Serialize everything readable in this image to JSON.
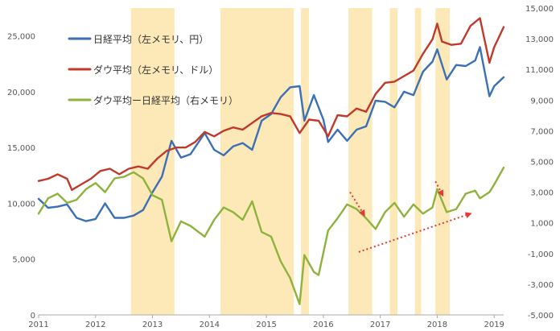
{
  "chart_data": {
    "type": "line",
    "x_range": [
      "2011-01",
      "2019-03"
    ],
    "x_ticks": [
      "2011",
      "2012",
      "2013",
      "2014",
      "2015",
      "2016",
      "2017",
      "2018",
      "2019"
    ],
    "y_left": {
      "range": [
        0,
        27500
      ],
      "ticks": [
        "0",
        "5,000",
        "10,000",
        "15,000",
        "20,000",
        "25,000"
      ]
    },
    "y_right": {
      "range": [
        -5000,
        15000
      ],
      "ticks": [
        "-5,000",
        "-3,000",
        "-1,000",
        "1,000",
        "3,000",
        "5,000",
        "7,000",
        "9,000",
        "11,000",
        "13,000",
        "15,000"
      ]
    },
    "grid": false,
    "legend_position": "top-left",
    "shaded_periods": [
      [
        "2012-08-15",
        "2013-05-20"
      ],
      [
        "2014-03-10",
        "2015-06-25"
      ],
      [
        "2015-08-10",
        "2015-09-30"
      ],
      [
        "2016-06-10",
        "2016-11-10"
      ],
      [
        "2017-03-01",
        "2017-04-20"
      ],
      [
        "2017-08-10",
        "2017-09-20"
      ],
      [
        "2017-12-20",
        "2018-03-20"
      ]
    ],
    "series": [
      {
        "name": "日経平均（左メモリ、円）",
        "axis": "left",
        "color": "#3b6fb6",
        "points": [
          [
            "2011-01",
            10400
          ],
          [
            "2011-03",
            9600
          ],
          [
            "2011-05",
            9700
          ],
          [
            "2011-07",
            9900
          ],
          [
            "2011-09",
            8700
          ],
          [
            "2011-11",
            8400
          ],
          [
            "2012-01",
            8600
          ],
          [
            "2012-03",
            10000
          ],
          [
            "2012-05",
            8700
          ],
          [
            "2012-07",
            8700
          ],
          [
            "2012-09",
            8900
          ],
          [
            "2012-11",
            9400
          ],
          [
            "2013-01",
            11000
          ],
          [
            "2013-03",
            12400
          ],
          [
            "2013-05",
            15600
          ],
          [
            "2013-07",
            14100
          ],
          [
            "2013-09",
            14400
          ],
          [
            "2013-12",
            16300
          ],
          [
            "2014-02",
            14800
          ],
          [
            "2014-04",
            14300
          ],
          [
            "2014-06",
            15100
          ],
          [
            "2014-08",
            15400
          ],
          [
            "2014-10",
            14800
          ],
          [
            "2014-12",
            17400
          ],
          [
            "2015-02",
            18000
          ],
          [
            "2015-04",
            19500
          ],
          [
            "2015-06",
            20400
          ],
          [
            "2015-08",
            20500
          ],
          [
            "2015-09",
            17400
          ],
          [
            "2015-11",
            19700
          ],
          [
            "2016-01",
            17500
          ],
          [
            "2016-02",
            15500
          ],
          [
            "2016-04",
            16600
          ],
          [
            "2016-06",
            15600
          ],
          [
            "2016-08",
            16600
          ],
          [
            "2016-10",
            16900
          ],
          [
            "2016-12",
            19200
          ],
          [
            "2017-02",
            19100
          ],
          [
            "2017-04",
            18600
          ],
          [
            "2017-06",
            20000
          ],
          [
            "2017-08",
            19700
          ],
          [
            "2017-10",
            21800
          ],
          [
            "2017-12",
            22700
          ],
          [
            "2018-01",
            23800
          ],
          [
            "2018-03",
            21100
          ],
          [
            "2018-05",
            22400
          ],
          [
            "2018-07",
            22300
          ],
          [
            "2018-09",
            22800
          ],
          [
            "2018-10",
            24000
          ],
          [
            "2018-11",
            21800
          ],
          [
            "2018-12",
            19600
          ],
          [
            "2019-01",
            20500
          ],
          [
            "2019-03",
            21300
          ]
        ]
      },
      {
        "name": "ダウ平均（左メモリ、ドル）",
        "axis": "left",
        "color": "#c0392b",
        "points": [
          [
            "2011-01",
            12000
          ],
          [
            "2011-03",
            12200
          ],
          [
            "2011-05",
            12600
          ],
          [
            "2011-07",
            12200
          ],
          [
            "2011-08",
            11200
          ],
          [
            "2011-10",
            11700
          ],
          [
            "2011-12",
            12200
          ],
          [
            "2012-02",
            12900
          ],
          [
            "2012-04",
            13100
          ],
          [
            "2012-06",
            12600
          ],
          [
            "2012-08",
            13100
          ],
          [
            "2012-10",
            13300
          ],
          [
            "2012-12",
            13100
          ],
          [
            "2013-02",
            14000
          ],
          [
            "2013-04",
            14700
          ],
          [
            "2013-06",
            15000
          ],
          [
            "2013-08",
            15000
          ],
          [
            "2013-10",
            15500
          ],
          [
            "2013-12",
            16400
          ],
          [
            "2014-02",
            16000
          ],
          [
            "2014-04",
            16500
          ],
          [
            "2014-06",
            16800
          ],
          [
            "2014-08",
            16600
          ],
          [
            "2014-10",
            17200
          ],
          [
            "2014-12",
            17800
          ],
          [
            "2015-02",
            18100
          ],
          [
            "2015-04",
            18000
          ],
          [
            "2015-06",
            17800
          ],
          [
            "2015-08",
            16300
          ],
          [
            "2015-10",
            17500
          ],
          [
            "2015-12",
            17400
          ],
          [
            "2016-02",
            16000
          ],
          [
            "2016-04",
            17900
          ],
          [
            "2016-06",
            17800
          ],
          [
            "2016-08",
            18500
          ],
          [
            "2016-10",
            18200
          ],
          [
            "2016-12",
            19800
          ],
          [
            "2017-02",
            20800
          ],
          [
            "2017-04",
            20900
          ],
          [
            "2017-06",
            21400
          ],
          [
            "2017-08",
            21900
          ],
          [
            "2017-10",
            23400
          ],
          [
            "2017-12",
            24700
          ],
          [
            "2018-01",
            26100
          ],
          [
            "2018-02",
            24500
          ],
          [
            "2018-04",
            24200
          ],
          [
            "2018-06",
            24300
          ],
          [
            "2018-08",
            25900
          ],
          [
            "2018-10",
            26600
          ],
          [
            "2018-12",
            22600
          ],
          [
            "2019-01",
            24000
          ],
          [
            "2019-03",
            25800
          ]
        ]
      },
      {
        "name": "ダウ平均ー日経平均（右メモリ）",
        "axis": "right",
        "color": "#8db33d",
        "points": [
          [
            "2011-01",
            1600
          ],
          [
            "2011-03",
            2600
          ],
          [
            "2011-05",
            2900
          ],
          [
            "2011-07",
            2300
          ],
          [
            "2011-09",
            2500
          ],
          [
            "2011-11",
            3200
          ],
          [
            "2012-01",
            3600
          ],
          [
            "2012-03",
            3000
          ],
          [
            "2012-05",
            3900
          ],
          [
            "2012-07",
            4000
          ],
          [
            "2012-09",
            4300
          ],
          [
            "2012-11",
            3900
          ],
          [
            "2013-01",
            2800
          ],
          [
            "2013-03",
            2500
          ],
          [
            "2013-05",
            -200
          ],
          [
            "2013-07",
            1100
          ],
          [
            "2013-09",
            800
          ],
          [
            "2013-12",
            100
          ],
          [
            "2014-02",
            1200
          ],
          [
            "2014-04",
            2000
          ],
          [
            "2014-06",
            1700
          ],
          [
            "2014-08",
            1200
          ],
          [
            "2014-10",
            2400
          ],
          [
            "2014-12",
            400
          ],
          [
            "2015-02",
            100
          ],
          [
            "2015-04",
            -1500
          ],
          [
            "2015-06",
            -2600
          ],
          [
            "2015-08",
            -4300
          ],
          [
            "2015-09",
            -1100
          ],
          [
            "2015-11",
            -2200
          ],
          [
            "2015-12",
            -2400
          ],
          [
            "2016-02",
            500
          ],
          [
            "2016-04",
            1300
          ],
          [
            "2016-06",
            2200
          ],
          [
            "2016-08",
            1900
          ],
          [
            "2016-10",
            1300
          ],
          [
            "2016-12",
            600
          ],
          [
            "2017-02",
            1700
          ],
          [
            "2017-04",
            2300
          ],
          [
            "2017-06",
            1400
          ],
          [
            "2017-08",
            2200
          ],
          [
            "2017-10",
            1600
          ],
          [
            "2017-12",
            2000
          ],
          [
            "2018-01",
            3200
          ],
          [
            "2018-03",
            1700
          ],
          [
            "2018-05",
            1900
          ],
          [
            "2018-07",
            2900
          ],
          [
            "2018-09",
            3100
          ],
          [
            "2018-10",
            2600
          ],
          [
            "2018-12",
            3000
          ],
          [
            "2019-01",
            3500
          ],
          [
            "2019-03",
            4600
          ]
        ]
      }
    ],
    "annotations": [
      {
        "type": "dotted-arrow",
        "color": "#e53935",
        "from": [
          "2016-06-20",
          3000
        ],
        "to": [
          "2016-09-20",
          1500
        ]
      },
      {
        "type": "dotted-arrow",
        "color": "#e53935",
        "from": [
          "2017-12-20",
          3700
        ],
        "to": [
          "2018-02-05",
          2800
        ]
      },
      {
        "type": "dotted-arrow",
        "color": "#e53935",
        "from": [
          "2016-08-15",
          -900
        ],
        "to": [
          "2018-08-01",
          1600
        ]
      }
    ]
  },
  "colors": {
    "shade": "#fde9b8",
    "axis": "#aaaaaa",
    "tick_text": "#555555"
  }
}
